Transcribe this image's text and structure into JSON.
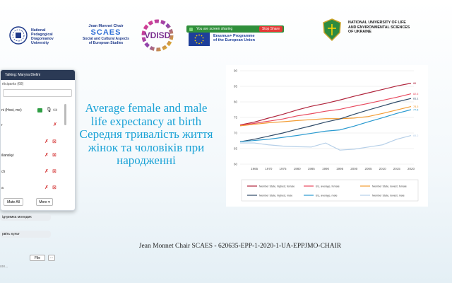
{
  "header": {
    "logo1": {
      "line1": "National",
      "line2": "Pedagogical",
      "line3": "Dragomanov",
      "line4": "University"
    },
    "logo2": {
      "title": "Jean Monnet Chair",
      "acronym": "SCAES",
      "sub1": "Social and Cultural Aspects",
      "sub2": "of European Studies"
    },
    "logo3": {
      "text": "VDISD"
    },
    "logo4": {
      "line1": "Erasmus+ Programme",
      "line2": "of the European Union"
    },
    "logo5": {
      "line1": "NATIONAL UNIVERSITY OF LIFE",
      "line2": "AND ENVIRONMENTAL SCIENCES",
      "line3": "OF UKRAINE"
    }
  },
  "share_bar": {
    "text": "You are screen sharing",
    "stop_label": "Stop Share",
    "color": "#2f8f3a",
    "stop_color": "#e53935"
  },
  "slide": {
    "title_lines": [
      "Average female and male",
      "life expectancy at birth",
      "Середня тривалість життя",
      "жінок та чоловіків при",
      "народженні"
    ],
    "footer": "Jean Monnet Chair SCAES - 620635-EPP-1-2020-1-UA-EPPJMO-CHAIR",
    "title_color": "#1aa2d6"
  },
  "panel": {
    "talking": "Talking: Maryna Dielini",
    "participants_label": "rticipants (68)",
    "rows": [
      {
        "name": "ni (Host, me)"
      },
      {
        "name": "r"
      },
      {
        "name": ""
      },
      {
        "name": "ilianskyi"
      },
      {
        "name": "ch"
      },
      {
        "name": "a"
      }
    ],
    "mute_all": "Mute All",
    "more": "More"
  },
  "chat": {
    "messages": [
      {
        "text": "ідтримка молодих"
      },
      {
        "text": "рвіть культ"
      }
    ],
    "file_label": "File",
    "more_label": "···",
    "placeholder": "ore..."
  },
  "chart_data": {
    "type": "line",
    "x": [
      1960,
      1965,
      1970,
      1975,
      1980,
      1985,
      1990,
      1995,
      2000,
      2005,
      2010,
      2015,
      2020
    ],
    "xticks": [
      1965,
      1970,
      1975,
      1980,
      1985,
      1990,
      1995,
      2000,
      2005,
      2010,
      2015,
      2020
    ],
    "yticks": [
      60,
      65,
      70,
      75,
      80,
      85,
      90
    ],
    "ylim": [
      60,
      90
    ],
    "xlim": [
      1960,
      2021
    ],
    "series": [
      {
        "name": "Member State, highest, female",
        "color": "#b0243c",
        "end_label": "86",
        "values": [
          72.6,
          73.5,
          74.8,
          76.0,
          77.4,
          78.6,
          79.5,
          80.6,
          81.8,
          82.9,
          84.0,
          85.1,
          86.0
        ]
      },
      {
        "name": "EU, average, female",
        "color": "#e84a5f",
        "end_label": "82.6",
        "values": [
          72.5,
          73.1,
          73.8,
          74.5,
          75.5,
          76.2,
          77.0,
          77.6,
          78.6,
          79.5,
          80.5,
          81.5,
          82.6
        ]
      },
      {
        "name": "Member State, lowest, female",
        "color": "#f39c33",
        "end_label": "78.5",
        "values": [
          72.3,
          72.8,
          73.3,
          73.6,
          74.0,
          74.3,
          74.6,
          74.6,
          74.8,
          75.3,
          76.3,
          77.4,
          78.5
        ]
      },
      {
        "name": "Member State, highest, male",
        "color": "#2e4a68",
        "end_label": "81.1",
        "values": [
          67.2,
          68.0,
          69.0,
          70.0,
          71.2,
          72.3,
          73.5,
          74.5,
          76.0,
          77.4,
          78.7,
          80.0,
          81.1
        ]
      },
      {
        "name": "EU, average, male",
        "color": "#2a9ad0",
        "end_label": "77.5",
        "values": [
          67.2,
          67.6,
          68.0,
          68.6,
          69.2,
          69.9,
          70.6,
          71.0,
          72.2,
          73.6,
          74.9,
          76.3,
          77.5
        ]
      },
      {
        "name": "Member State, lowest, male",
        "color": "#b5cfe8",
        "end_label": "69.2",
        "values": [
          66.8,
          66.8,
          66.2,
          65.8,
          65.6,
          65.5,
          66.8,
          64.5,
          64.8,
          65.5,
          66.2,
          68.0,
          69.2
        ]
      }
    ]
  }
}
